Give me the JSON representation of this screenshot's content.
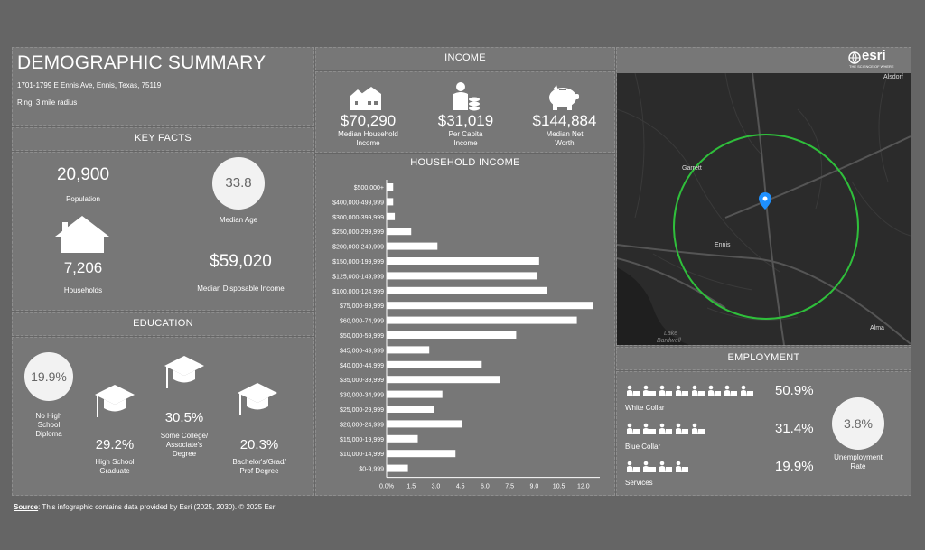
{
  "header": {
    "title": "DEMOGRAPHIC SUMMARY",
    "address": "1701-1799 E Ennis Ave, Ennis, Texas, 75119",
    "ring": "Ring: 3 mile radius"
  },
  "key_facts": {
    "heading": "KEY FACTS",
    "population_value": "20,900",
    "population_label": "Population",
    "median_age_value": "33.8",
    "median_age_label": "Median Age",
    "households_value": "7,206",
    "households_label": "Households",
    "disp_income_value": "$59,020",
    "disp_income_label": "Median Disposable Income"
  },
  "education": {
    "heading": "EDUCATION",
    "no_hs_value": "19.9%",
    "no_hs_label": [
      "No High",
      "School",
      "Diploma"
    ],
    "hs_value": "29.2%",
    "hs_label": [
      "High School",
      "Graduate"
    ],
    "college_value": "30.5%",
    "college_label": [
      "Some College/",
      "Associate's",
      "Degree"
    ],
    "bach_value": "20.3%",
    "bach_label": [
      "Bachelor's/Grad/",
      "Prof Degree"
    ]
  },
  "income": {
    "heading": "INCOME",
    "median_hh_value": "$70,290",
    "median_hh_label": [
      "Median Household",
      "Income"
    ],
    "per_capita_value": "$31,019",
    "per_capita_label": [
      "Per Capita",
      "Income"
    ],
    "net_worth_value": "$144,884",
    "net_worth_label": [
      "Median Net",
      "Worth"
    ]
  },
  "chart_data": {
    "type": "bar",
    "orientation": "horizontal",
    "title": "HOUSEHOLD INCOME",
    "categories": [
      "$500,000+",
      "$400,000-499,999",
      "$300,000-399,999",
      "$250,000-299,999",
      "$200,000-249,999",
      "$150,000-199,999",
      "$125,000-149,999",
      "$100,000-124,999",
      "$75,000-99,999",
      "$60,000-74,999",
      "$50,000-59,999",
      "$45,000-49,999",
      "$40,000-44,999",
      "$35,000-39,999",
      "$30,000-34,999",
      "$25,000-29,999",
      "$20,000-24,999",
      "$15,000-19,999",
      "$10,000-14,999",
      "$0-9,999"
    ],
    "values": [
      0.4,
      0.4,
      0.5,
      1.5,
      3.1,
      9.3,
      9.2,
      9.8,
      12.6,
      11.6,
      7.9,
      2.6,
      5.8,
      6.9,
      3.4,
      2.9,
      4.6,
      1.9,
      4.2,
      1.3
    ],
    "xlim": [
      0,
      13
    ],
    "ticks": [
      "0.0%",
      "1.5",
      "3.0",
      "4.5",
      "6.0",
      "7.5",
      "9.0",
      "10.5",
      "12.0"
    ]
  },
  "map": {
    "brand": "esri",
    "tagline": "THE SCIENCE OF WHERE",
    "labels": {
      "garrett": "Garrett",
      "ennis": "Ennis",
      "alma": "Alma",
      "asdorf": "Alsdorf",
      "lake1": "Lake",
      "lake2": "Bardwell"
    }
  },
  "employment": {
    "heading": "EMPLOYMENT",
    "white_value": "50.9%",
    "white_label": "White Collar",
    "blue_value": "31.4%",
    "blue_label": "Blue Collar",
    "services_value": "19.9%",
    "services_label": "Services",
    "unemp_value": "3.8%",
    "unemp_label": [
      "Unemployment",
      "Rate"
    ]
  },
  "footer": {
    "source_label": "Source",
    "source_text": ": This infographic contains data provided by Esri (2025, 2030).  © 2025 Esri"
  },
  "colors": {
    "page_bg": "#656565",
    "panel_bg": "#777777",
    "map_bg": "#2b2b2b",
    "ring": "#2fbf3b",
    "pin": "#1e90ff"
  }
}
